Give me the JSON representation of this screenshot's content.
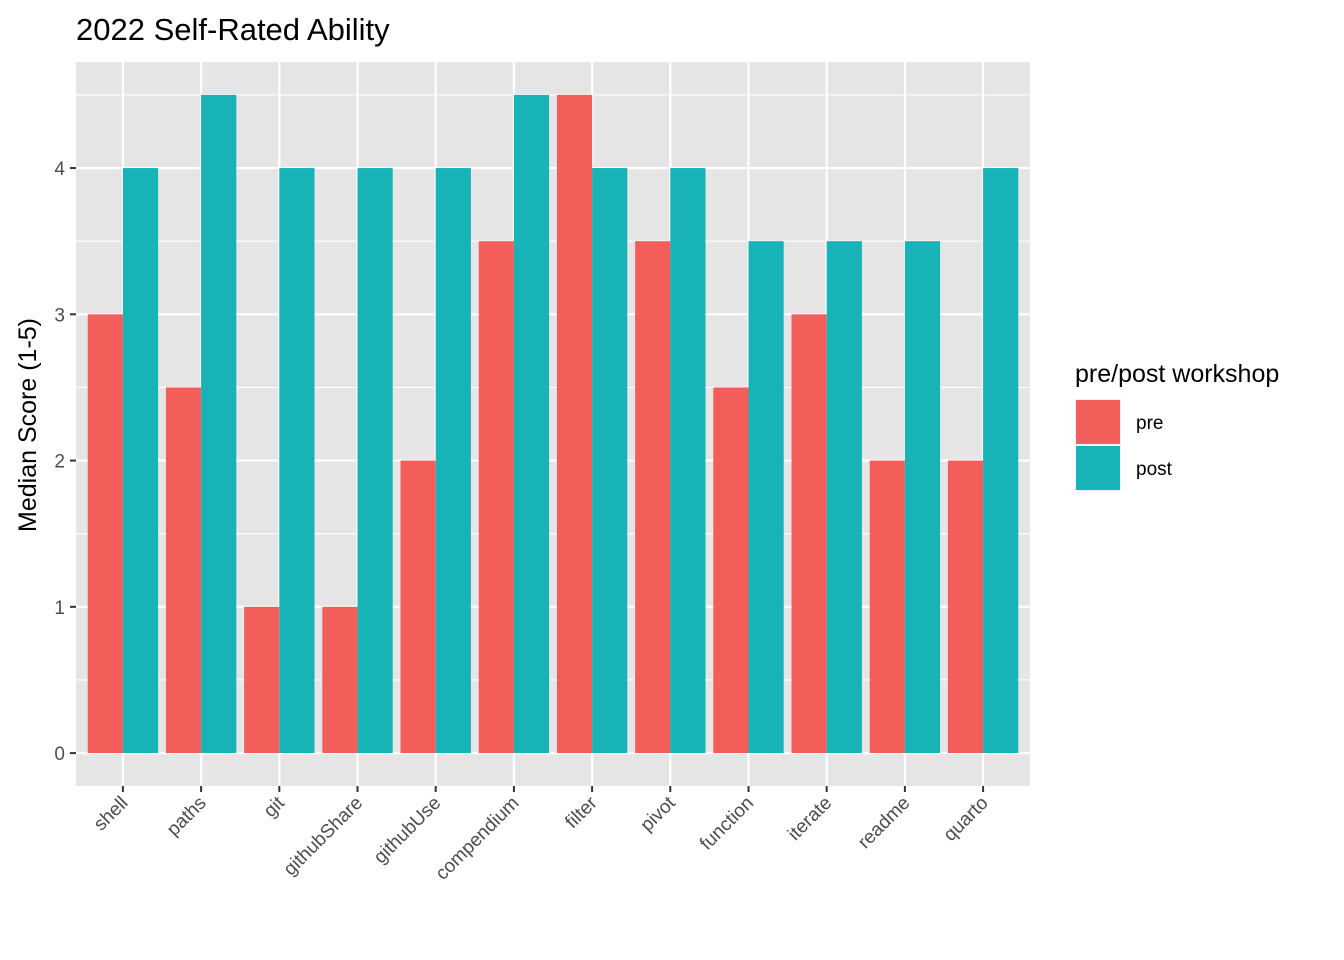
{
  "chart_data": {
    "type": "bar",
    "title": "2022 Self-Rated Ability",
    "xlabel": "",
    "ylabel": "Median Score (1-5)",
    "categories": [
      "shell",
      "paths",
      "git",
      "githubShare",
      "githubUse",
      "compendium",
      "filter",
      "pivot",
      "function",
      "iterate",
      "readme",
      "quarto"
    ],
    "series": [
      {
        "name": "pre",
        "color": "#F35E5A",
        "values": [
          3,
          2.5,
          1,
          1,
          2,
          3.5,
          4.5,
          3.5,
          2.5,
          3,
          2,
          2
        ]
      },
      {
        "name": "post",
        "color": "#17B3B7",
        "values": [
          4,
          4.5,
          4,
          4,
          4,
          4.5,
          4,
          4,
          3.5,
          3.5,
          3.5,
          4
        ]
      }
    ],
    "ylim": [
      -0.225,
      4.725
    ],
    "yticks": [
      0,
      1,
      2,
      3,
      4
    ],
    "legend": {
      "title": "pre/post workshop",
      "position": "right"
    },
    "grid": true,
    "panel_background": "#E5E5E5",
    "grid_color": "#FFFFFF"
  }
}
